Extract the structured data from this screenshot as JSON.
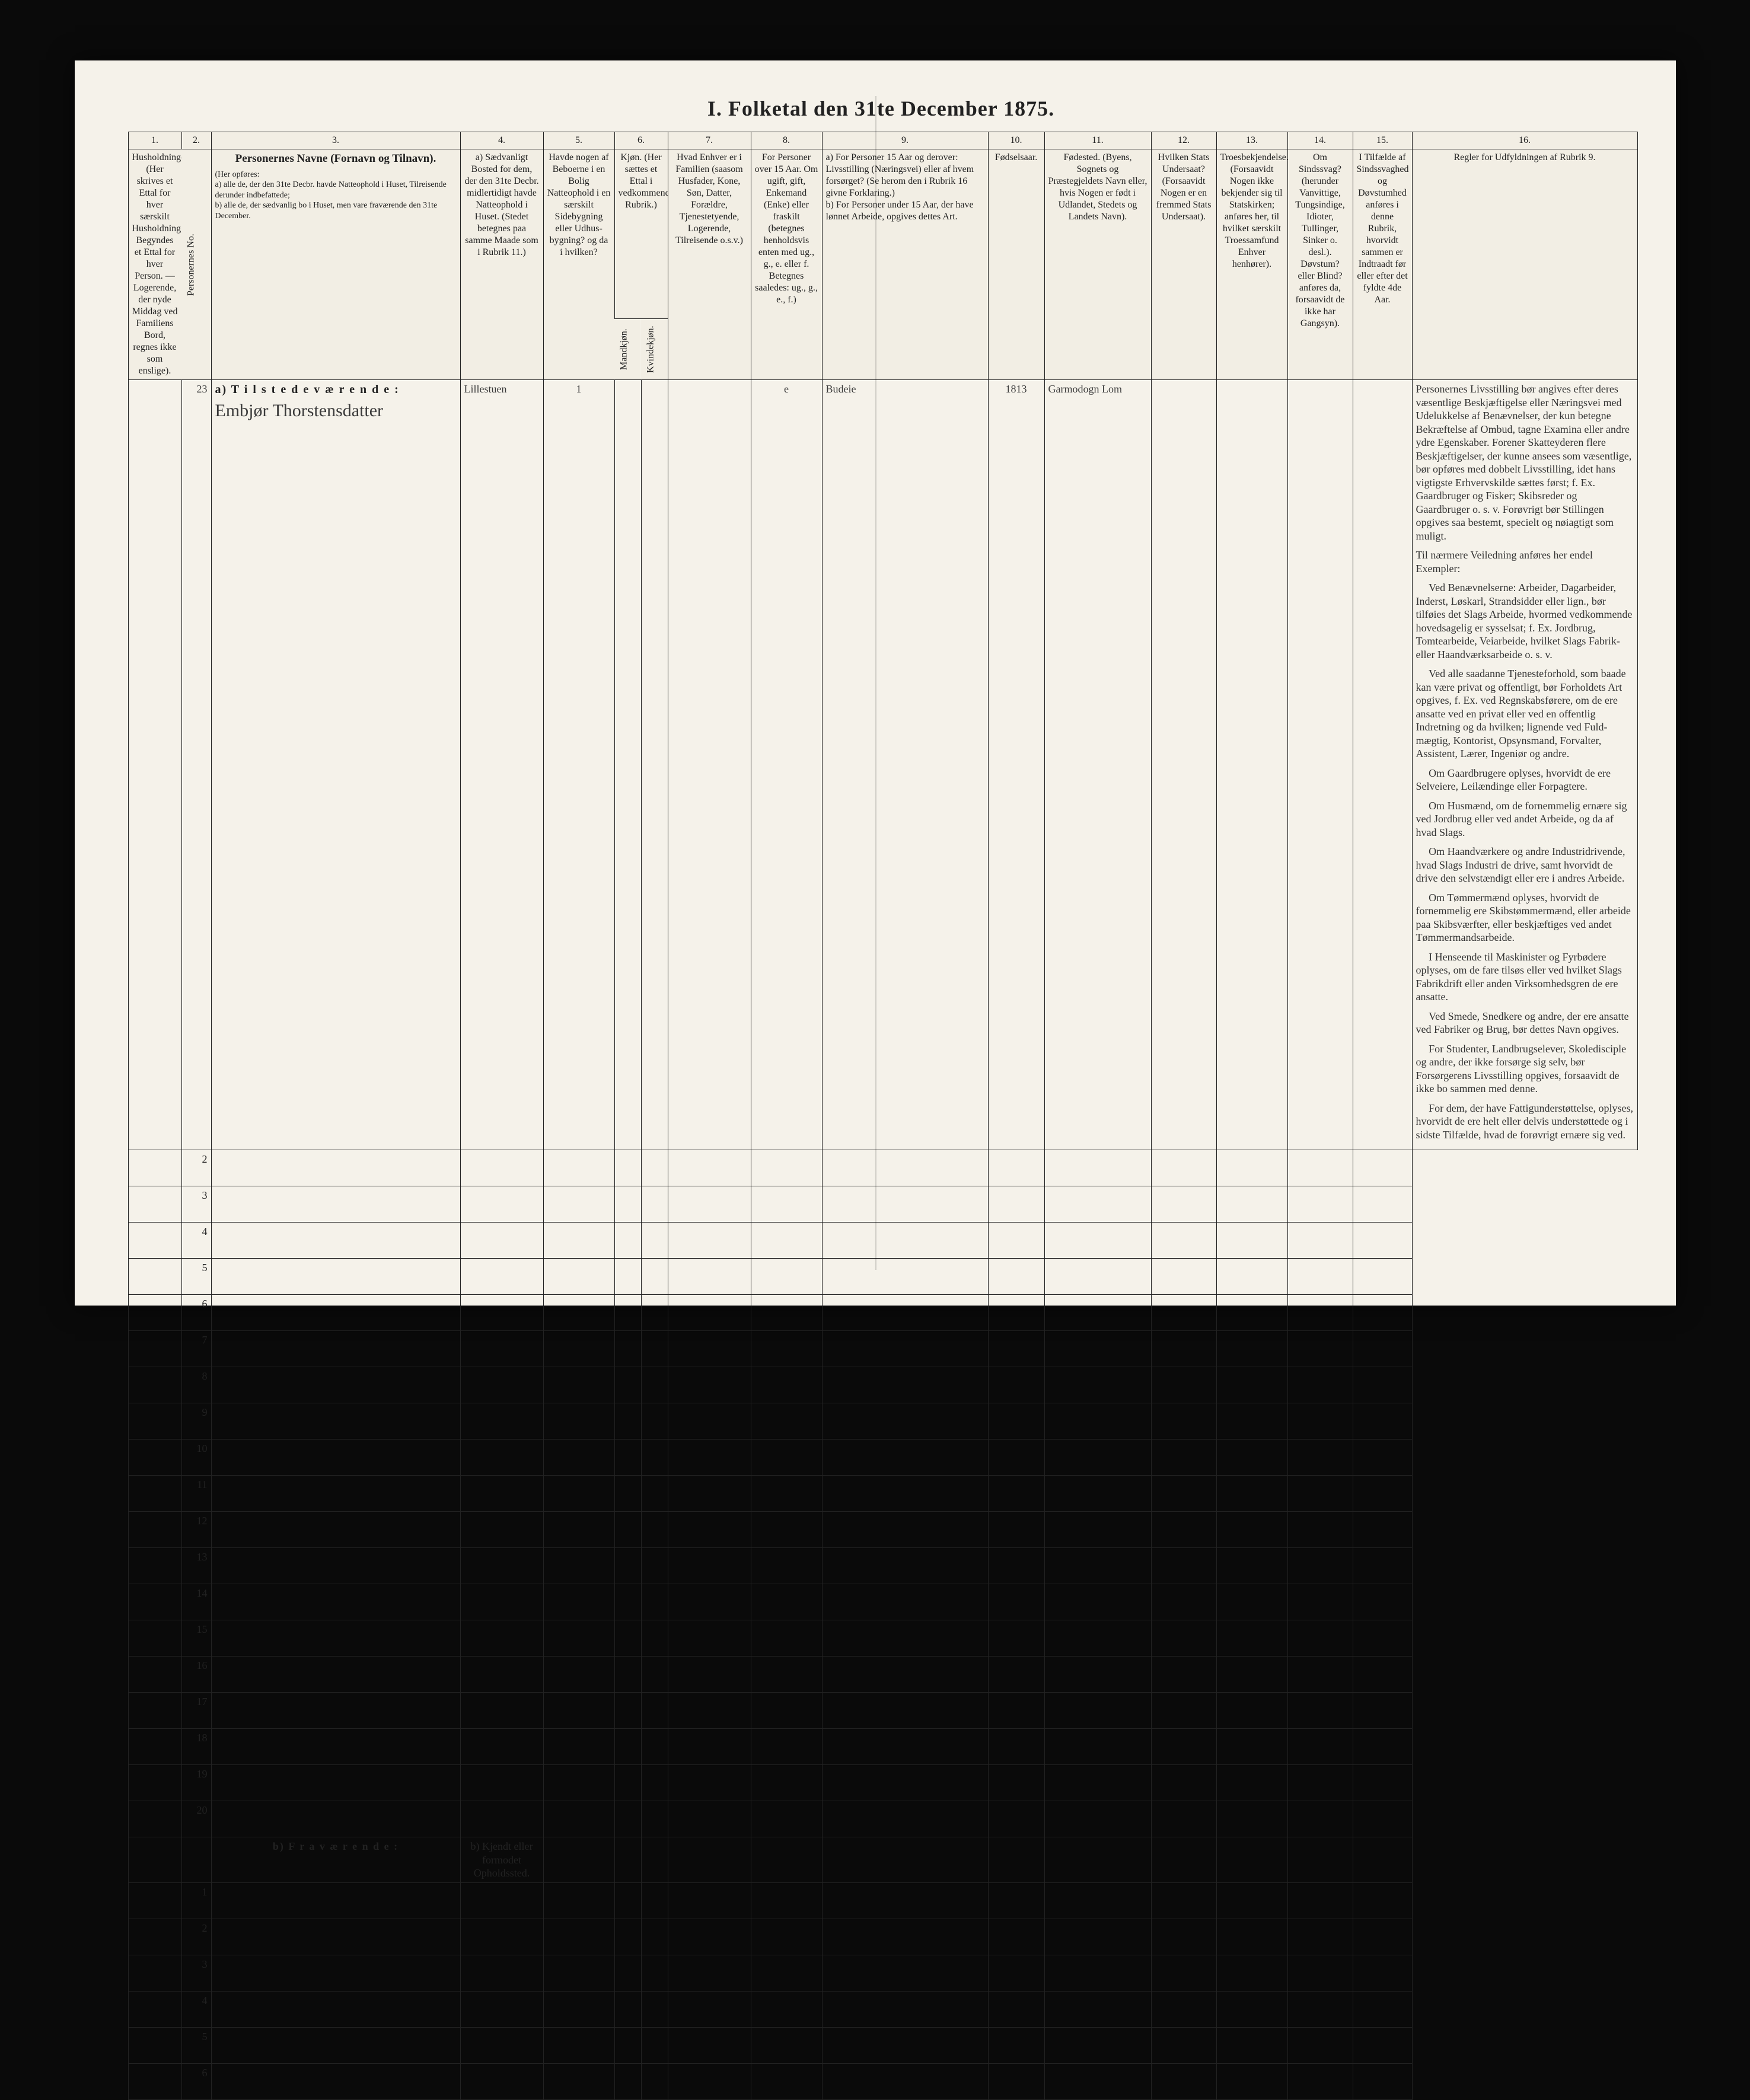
{
  "title": "I.  Folketal den 31te December 1875.",
  "columns": {
    "nums": [
      "1.",
      "2.",
      "3.",
      "4.",
      "5.",
      "6.",
      "7.",
      "8.",
      "9.",
      "10.",
      "11.",
      "12.",
      "13.",
      "14.",
      "15.",
      "16."
    ],
    "h1": "Husholdninger. (Her skrives et Ettal for hver særskilt Husholdning; Begyndes et Ettal for hver Person. — Logerende, der nyde Middag ved Familiens Bord, regnes ikke som enslige).",
    "h2": "Personernes No.",
    "h3_title": "Personernes Navne (Fornavn og Tilnavn).",
    "h3_sub": "(Her opføres:\na) alle de, der den 31te Decbr. havde Natteophold i Huset, Tilreisende derunder indbefattede;\nb) alle de, der sædvanlig bo i Huset, men vare fraværende den 31te December.",
    "h4": "a) Sædvanligt Bosted for dem, der den 31te Decbr. midlertidigt havde Natteophold i Huset. (Stedet betegnes paa samme Maade som i Rubrik 11.)",
    "h5": "Havde nogen af Beboerne i en Bolig Natteophold i en særskilt Sidebygning eller Udhus-bygning? og da i hvilken?",
    "h6": "Kjøn. (Her sættes et Ettal i vedkommende Rubrik.)",
    "h6a": "Mandkjøn.",
    "h6b": "Kvindekjøn.",
    "h7": "Hvad Enhver er i Familien (saasom Husfader, Kone, Søn, Datter, Forældre, Tjenestetyende, Logerende, Tilreisende o.s.v.)",
    "h8": "For Personer over 15 Aar. Om ugift, gift, Enkemand (Enke) eller fraskilt (betegnes henholdsvis enten med ug., g., e. eller f. Betegnes saaledes: ug., g., e., f.)",
    "h9": "a) For Personer 15 Aar og derover: Livsstilling (Næringsvei) eller af hvem forsørget? (Se herom den i Rubrik 16 givne Forklaring.)\nb) For Personer under 15 Aar, der have lønnet Arbeide, opgives dettes Art.",
    "h10": "Fødselsaar.",
    "h11": "Fødested. (Byens, Sognets og Præstegjeldets Navn eller, hvis Nogen er født i Udlandet, Stedets og Landets Navn).",
    "h12": "Hvilken Stats Undersaat? (Forsaavidt Nogen er en fremmed Stats Undersaat).",
    "h13": "Troesbekjendelse. (Forsaavidt Nogen ikke bekjender sig til Statskirken; anføres her, til hvilket særskilt Troessamfund Enhver henhører).",
    "h14": "Om Sindssvag? (herunder Vanvittige, Tungsindige, Idioter, Tullinger, Sinker o. desl.). Døvstum? eller Blind? anføres da, forsaavidt de ikke har Gangsyn).",
    "h15": "I Tilfælde af Sindssvaghed og Døvstumhed anføres i denne Rubrik, hvorvidt sammen er Indtraadt før eller efter det fyldte 4de Aar.",
    "h16_title": "Regler for Udfyldningen af Rubrik 9."
  },
  "section_a": "a)  T i l s t e d e v æ r e n d e :",
  "section_b": "b)  F r a v æ r e n d e :",
  "section_b_col4": "b) Kjendt eller formodet Opholdssted.",
  "entry": {
    "row": "23",
    "name": "Embjør Thorstensdatter",
    "col4": "Lillestuen",
    "col5": "1",
    "col8": "e",
    "col9": "Budeie",
    "col10": "1813",
    "col11": "Garmodogn Lom"
  },
  "rows_a": [
    "2",
    "3",
    "4",
    "5",
    "6",
    "7",
    "8",
    "9",
    "10",
    "11",
    "12",
    "13",
    "14",
    "15",
    "16",
    "17",
    "18",
    "19",
    "20"
  ],
  "rows_b": [
    "1",
    "2",
    "3",
    "4",
    "5",
    "6"
  ],
  "instructions": [
    "Personernes Livsstilling bør angives efter deres væsentlige Beskjæftigelse eller Næringsvei med Udelukkelse af Benævnelser, der kun betegne Bekræftelse af Ombud, tagne Examina eller andre ydre Egenskaber. Forener Skatteyderen flere Beskjæftigelser, der kunne ansees som væsentlige, bør opføres med dobbelt Livsstilling, idet hans vigtigste Erhvervskilde sættes først; f. Ex. Gaardbruger og Fisker; Skibsreder og Gaardbruger o. s. v. Forøvrigt bør Stillingen opgives saa bestemt, specielt og nøiagtigt som muligt.",
    "Til nærmere Veiledning anføres her endel Exempler:",
    "Ved Benævnelserne: Arbeider, Dagarbeider, Inderst, Løskarl, Strandsidder eller lign., bør tilføies det Slags Arbeide, hvormed vedkommende hovedsagelig er sysselsat; f. Ex. Jordbrug, Tomtearbeide, Veiarbeide, hvilket Slags Fabrik- eller Haandværksarbeide o. s. v.",
    "Ved alle saadanne Tjenesteforhold, som baade kan være privat og offentligt, bør Forholdets Art opgives, f. Ex. ved Regnskabsførere, om de ere ansatte ved en privat eller ved en offentlig Indretning og da hvilken; lignende ved Fuld-mægtig, Kontorist, Opsynsmand, Forvalter, Assistent, Lærer, Ingeniør og andre.",
    "Om Gaardbrugere oplyses, hvorvidt de ere Selveiere, Leilændinge eller Forpagtere.",
    "Om Husmænd, om de fornemmelig ernære sig ved Jordbrug eller ved andet Arbeide, og da af hvad Slags.",
    "Om Haandværkere og andre Industridrivende, hvad Slags Industri de drive, samt hvorvidt de drive den selvstændigt eller ere i andres Arbeide.",
    "Om Tømmermænd oplyses, hvorvidt de fornemmelig ere Skibstømmermænd, eller arbeide paa Skibsværfter, eller beskjæftiges ved andet Tømmermandsarbeide.",
    "I Henseende til Maskinister og Fyrbødere oplyses, om de fare tilsøs eller ved hvilket Slags Fabrikdrift eller anden Virksomhedsgren de ere ansatte.",
    "Ved Smede, Snedkere og andre, der ere ansatte ved Fabriker og Brug, bør dettes Navn opgives.",
    "For Studenter, Landbrugselever, Skoledisciple og andre, der ikke forsørge sig selv, bør Forsørgerens Livsstilling opgives, forsaavidt de ikke bo sammen med denne.",
    "For dem, der have Fattigunderstøttelse, oplyses, hvorvidt de ere helt eller delvis understøttede og i sidste Tilfælde, hvad de forøvrigt ernære sig ved."
  ],
  "colors": {
    "paper": "#f5f2ea",
    "ink": "#222222",
    "frame_bg": "#0a0a0a"
  }
}
